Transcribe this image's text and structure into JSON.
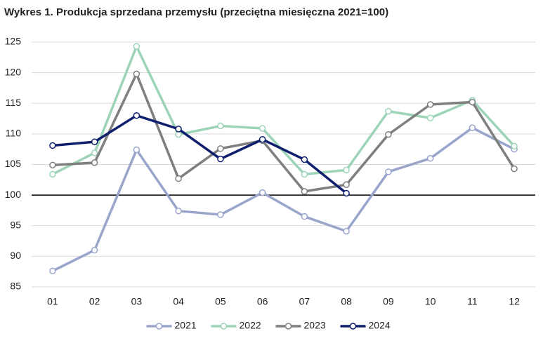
{
  "chart_data": {
    "type": "line",
    "title": "Wykres 1. Produkcja sprzedana przemysłu (przeciętna miesięczna 2021=100)",
    "categories": [
      "01",
      "02",
      "03",
      "04",
      "05",
      "06",
      "07",
      "08",
      "09",
      "10",
      "11",
      "12"
    ],
    "series": [
      {
        "name": "2021",
        "color": "#9aa5cc",
        "values": [
          87.6,
          91.0,
          107.4,
          97.4,
          96.8,
          100.4,
          96.5,
          94.1,
          103.8,
          106.0,
          111.0,
          107.5
        ]
      },
      {
        "name": "2022",
        "color": "#9dd4b8",
        "values": [
          103.4,
          106.9,
          124.3,
          109.9,
          111.3,
          110.9,
          103.4,
          104.1,
          113.7,
          112.6,
          115.5,
          108.0
        ]
      },
      {
        "name": "2023",
        "color": "#7f7f7f",
        "values": [
          104.9,
          105.3,
          119.8,
          102.7,
          107.6,
          108.9,
          100.6,
          101.7,
          109.9,
          114.8,
          115.2,
          104.3
        ]
      },
      {
        "name": "2024",
        "color": "#0f1f6e",
        "values": [
          108.1,
          108.7,
          113.0,
          110.8,
          105.9,
          109.1,
          105.8,
          100.3,
          null,
          null,
          null,
          null
        ]
      }
    ],
    "ylim": [
      85,
      125
    ],
    "yticks": [
      85,
      90,
      95,
      100,
      105,
      110,
      115,
      120,
      125
    ],
    "grid": true,
    "reference_line": 100,
    "legend": "bottom"
  }
}
